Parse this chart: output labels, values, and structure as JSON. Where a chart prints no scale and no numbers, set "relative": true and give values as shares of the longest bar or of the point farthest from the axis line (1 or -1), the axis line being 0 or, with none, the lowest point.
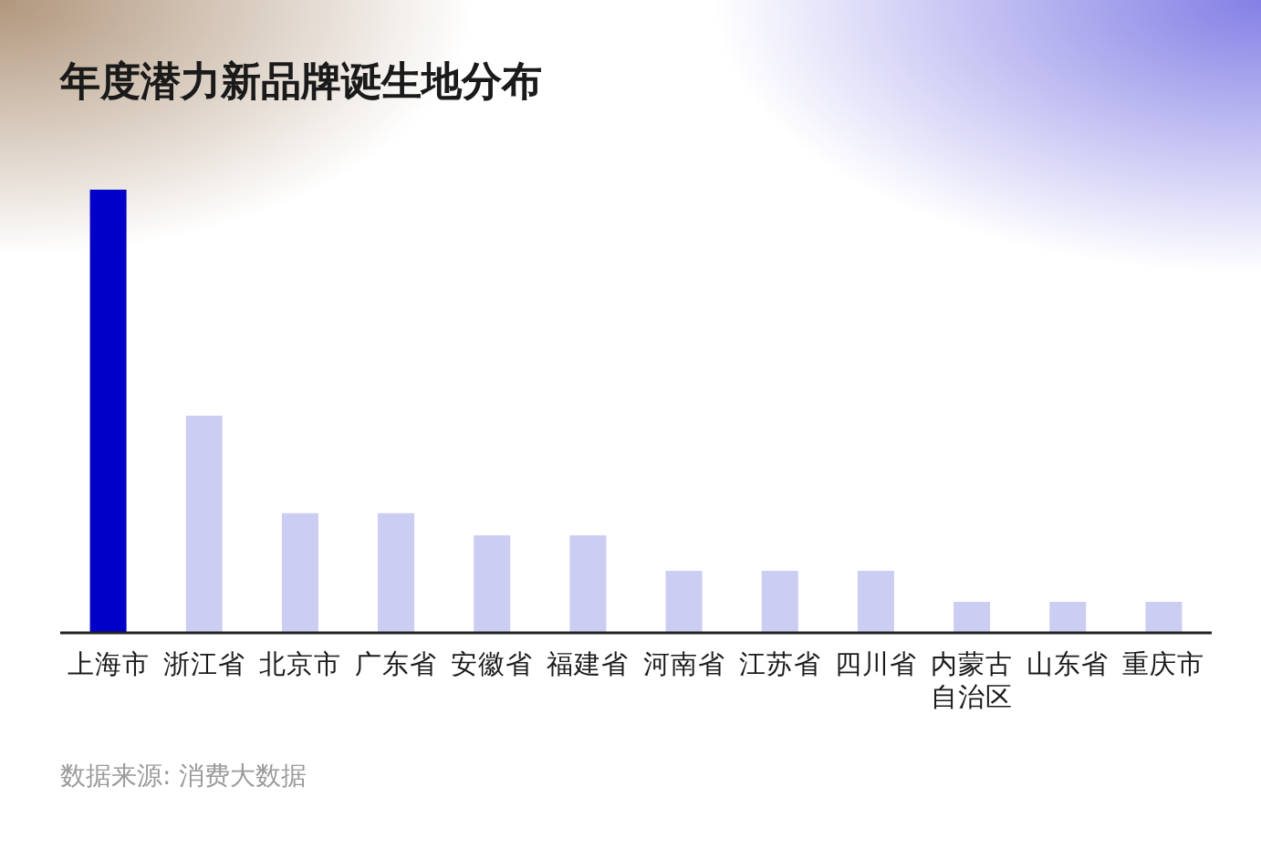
{
  "chart_data": {
    "type": "bar",
    "title": "年度潜力新品牌诞生地分布",
    "categories": [
      "上海市",
      "浙江省",
      "北京市",
      "广东省",
      "安徽省",
      "福建省",
      "河南省",
      "江苏省",
      "四川省",
      "内蒙古自治区",
      "山东省",
      "重庆市"
    ],
    "values": [
      1,
      0.49,
      0.27,
      0.27,
      0.22,
      0.22,
      0.14,
      0.14,
      0.14,
      0.07,
      0.07,
      0.07
    ],
    "colors": [
      "#0000c8",
      "#cccdf2",
      "#cccdf2",
      "#cccdf2",
      "#cccdf2",
      "#cccdf2",
      "#cccdf2",
      "#cccdf2",
      "#cccdf2",
      "#cccdf2",
      "#cccdf2",
      "#cccdf2"
    ],
    "relative": true,
    "annotations": [
      "数据来源: 消费大数据"
    ]
  }
}
